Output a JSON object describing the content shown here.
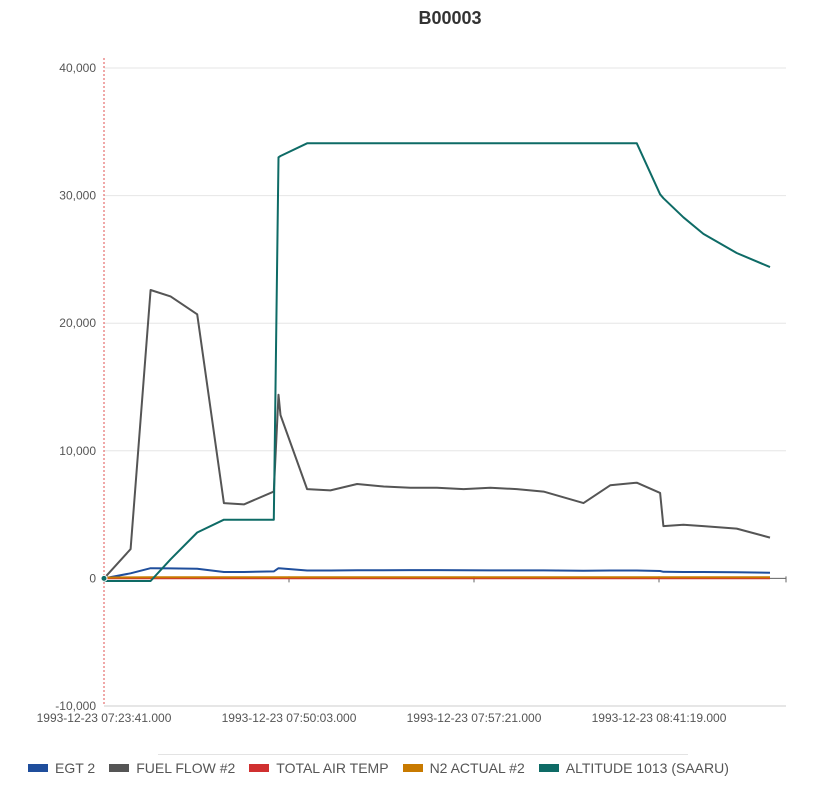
{
  "chart_data": {
    "type": "line",
    "title": "B00003",
    "ylim": [
      -10000,
      40000
    ],
    "y_ticks": [
      -10000,
      0,
      10000,
      20000,
      30000,
      40000
    ],
    "y_tick_labels": [
      "-10,000",
      "0",
      "10,000",
      "20,000",
      "30,000",
      "40,000"
    ],
    "x_tick_labels": [
      "1993-12-23 07:23:41.000",
      "1993-12-23 07:50:03.000",
      "1993-12-23 07:57:21.000",
      "1993-12-23 08:41:19.000"
    ],
    "grid": true,
    "legend_position": "bottom",
    "x": [
      0,
      0.04,
      0.07,
      0.1,
      0.14,
      0.18,
      0.21,
      0.255,
      0.262,
      0.265,
      0.305,
      0.34,
      0.38,
      0.42,
      0.46,
      0.5,
      0.54,
      0.58,
      0.62,
      0.66,
      0.72,
      0.76,
      0.8,
      0.835,
      0.84,
      0.87,
      0.9,
      0.95,
      1.0
    ],
    "series": [
      {
        "name": "EGT 2",
        "color": "#1f4e9c",
        "values": [
          0,
          400,
          800,
          780,
          760,
          500,
          500,
          550,
          800,
          780,
          620,
          620,
          640,
          640,
          650,
          650,
          640,
          630,
          630,
          630,
          600,
          620,
          620,
          580,
          520,
          500,
          500,
          480,
          450
        ]
      },
      {
        "name": "FUEL FLOW #2",
        "color": "#555555",
        "values": [
          0,
          2300,
          22600,
          22100,
          20700,
          5900,
          5800,
          6800,
          14400,
          12800,
          7000,
          6900,
          7400,
          7200,
          7100,
          7100,
          7000,
          7100,
          7000,
          6800,
          5900,
          7300,
          7500,
          6700,
          4100,
          4200,
          4100,
          3900,
          3200
        ]
      },
      {
        "name": "TOTAL AIR TEMP",
        "color": "#d03030",
        "values": [
          10,
          15,
          15,
          15,
          15,
          15,
          15,
          15,
          15,
          15,
          15,
          15,
          15,
          15,
          15,
          15,
          15,
          15,
          15,
          15,
          15,
          15,
          15,
          15,
          15,
          15,
          15,
          15,
          15
        ]
      },
      {
        "name": "N2 ACTUAL #2",
        "color": "#c87a00",
        "values": [
          60,
          80,
          90,
          90,
          90,
          85,
          85,
          85,
          90,
          90,
          88,
          88,
          88,
          88,
          88,
          88,
          88,
          88,
          88,
          88,
          88,
          88,
          88,
          88,
          85,
          85,
          85,
          85,
          85
        ]
      },
      {
        "name": "ALTITUDE 1013 (SAARU)",
        "color": "#0e6b66",
        "values": [
          -200,
          -200,
          -200,
          1500,
          3600,
          4600,
          4600,
          4600,
          33000,
          33100,
          34100,
          34100,
          34100,
          34100,
          34100,
          34100,
          34100,
          34100,
          34100,
          34100,
          34100,
          34100,
          34100,
          30100,
          29800,
          28300,
          27000,
          25500,
          24400
        ]
      }
    ]
  },
  "legend": {
    "items": [
      {
        "label": "EGT 2",
        "color": "#1f4e9c"
      },
      {
        "label": "FUEL FLOW #2",
        "color": "#555555"
      },
      {
        "label": "TOTAL AIR TEMP",
        "color": "#d03030"
      },
      {
        "label": "N2 ACTUAL #2",
        "color": "#c87a00"
      },
      {
        "label": "ALTITUDE 1013 (SAARU)",
        "color": "#0e6b66"
      }
    ]
  }
}
